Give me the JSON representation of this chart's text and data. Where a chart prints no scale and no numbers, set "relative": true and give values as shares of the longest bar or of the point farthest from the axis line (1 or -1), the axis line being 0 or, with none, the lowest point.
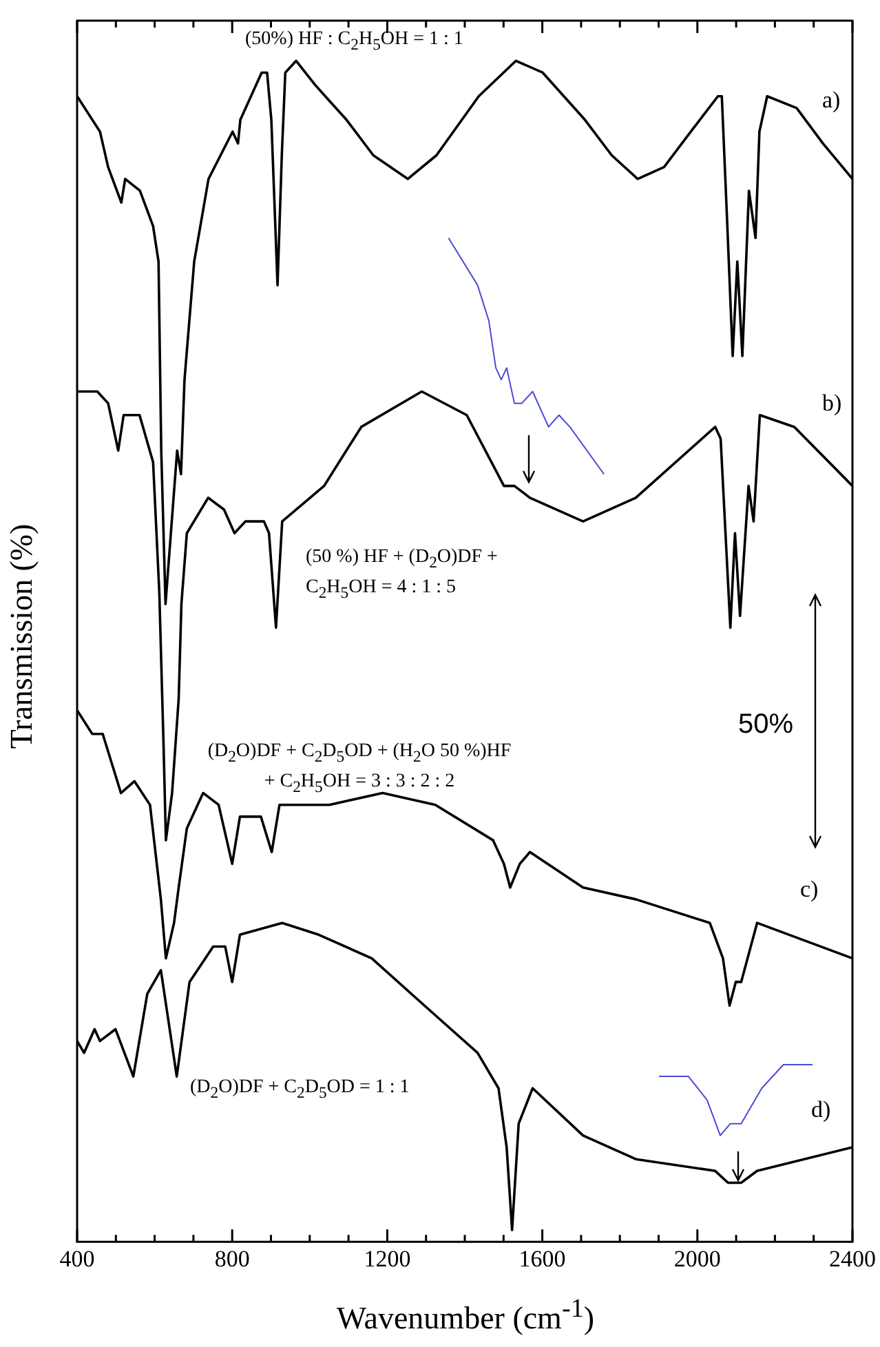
{
  "chart_data": {
    "type": "line",
    "relative": true,
    "xlabel": "Wavenumber (cm$^{-1}$)",
    "ylabel": "Transmission (%)",
    "xlim": [
      400,
      2400
    ],
    "xticks": [
      400,
      {
        "value": 500,
        "label": null
      },
      {
        "value": 600,
        "label": null
      },
      {
        "value": 700,
        "label": null
      },
      800,
      {
        "value": 900,
        "label": null
      },
      {
        "value": 1000,
        "label": null
      },
      {
        "value": 1100,
        "label": null
      },
      1200,
      {
        "value": 1300,
        "label": null
      },
      {
        "value": 1400,
        "label": null
      },
      {
        "value": 1500,
        "label": null
      },
      1600,
      {
        "value": 1700,
        "label": null
      },
      {
        "value": 1800,
        "label": null
      },
      {
        "value": 1900,
        "label": null
      },
      2000,
      {
        "value": 2100,
        "label": null
      },
      {
        "value": 2200,
        "label": null
      },
      {
        "value": 2300,
        "label": null
      },
      2400
    ],
    "grid": false,
    "legend": false,
    "marker": "none",
    "line_style": "solid",
    "annotations": [
      "(50%) HF : C$_{2}$H$_{5}$OH = 1 : 1",
      "(50 %) HF + (D$_{2}$O)DF + C$_{2}$H$_{5}$OH = 4 : 1 : 5",
      "(D$_{2}$O)DF + C$_{2}$D$_{5}$OD + (H$_{2}$O 50 %)HF + C$_{2}$H$_{5}$OH = 3 : 3 : 2 : 2",
      "(D$_{2}$O)DF + C$_{2}$D$_{5}$OD = 1 : 1",
      "50%"
    ],
    "series": [
      {
        "name": "a)",
        "color": "#000000",
        "x": [
          400,
          459,
          480,
          514,
          524,
          562,
          596,
          610,
          617,
          628,
          658,
          668,
          677,
          702,
          739,
          801,
          815,
          821,
          876,
          890,
          901,
          917,
          928,
          937,
          965,
          1013,
          1040,
          1095,
          1164,
          1253,
          1327,
          1436,
          1532,
          1601,
          1710,
          1779,
          1846,
          1914,
          1983,
          2053,
          2063,
          2076,
          2091,
          2103,
          2116,
          2133,
          2150,
          2160,
          2180,
          2256,
          2324,
          2400
        ],
        "values": [
          0.97,
          0.94,
          0.91,
          0.88,
          0.9,
          0.89,
          0.86,
          0.83,
          0.67,
          0.54,
          0.67,
          0.65,
          0.73,
          0.83,
          0.9,
          0.94,
          0.93,
          0.95,
          0.99,
          0.99,
          0.95,
          0.81,
          0.92,
          0.99,
          1.0,
          0.98,
          0.97,
          0.95,
          0.92,
          0.9,
          0.92,
          0.97,
          1.0,
          0.99,
          0.95,
          0.92,
          0.9,
          0.91,
          0.94,
          0.97,
          0.97,
          0.87,
          0.75,
          0.83,
          0.75,
          0.89,
          0.85,
          0.94,
          0.97,
          0.96,
          0.93,
          0.9
        ]
      },
      {
        "name": "b)",
        "color": "#000000",
        "x": [
          400,
          425,
          452,
          480,
          506,
          520,
          561,
          596,
          612,
          623,
          629,
          645,
          662,
          669,
          683,
          738,
          779,
          806,
          834,
          882,
          895,
          913,
          929,
          1037,
          1133,
          1289,
          1405,
          1501,
          1528,
          1568,
          1705,
          1841,
          2046,
          2060,
          2085,
          2097,
          2110,
          2132,
          2145,
          2161,
          2250,
          2400
        ],
        "values": [
          0.72,
          0.72,
          0.72,
          0.71,
          0.67,
          0.7,
          0.7,
          0.66,
          0.55,
          0.42,
          0.34,
          0.38,
          0.46,
          0.54,
          0.6,
          0.63,
          0.62,
          0.6,
          0.61,
          0.61,
          0.6,
          0.52,
          0.61,
          0.64,
          0.69,
          0.72,
          0.7,
          0.64,
          0.64,
          0.63,
          0.61,
          0.63,
          0.69,
          0.68,
          0.52,
          0.6,
          0.53,
          0.64,
          0.61,
          0.7,
          0.69,
          0.64
        ]
      },
      {
        "name": "c)",
        "color": "#000000",
        "x": [
          400,
          439,
          466,
          513,
          548,
          588,
          616,
          629,
          650,
          662,
          683,
          725,
          765,
          800,
          820,
          874,
          902,
          922,
          1051,
          1188,
          1324,
          1473,
          1501,
          1517,
          1542,
          1568,
          1705,
          1841,
          2032,
          2066,
          2083,
          2099,
          2113,
          2154,
          2400
        ],
        "values": [
          0.45,
          0.43,
          0.43,
          0.38,
          0.39,
          0.37,
          0.29,
          0.24,
          0.27,
          0.3,
          0.35,
          0.38,
          0.37,
          0.32,
          0.36,
          0.36,
          0.33,
          0.37,
          0.37,
          0.38,
          0.37,
          0.34,
          0.32,
          0.3,
          0.32,
          0.33,
          0.3,
          0.29,
          0.27,
          0.24,
          0.2,
          0.22,
          0.22,
          0.27,
          0.24
        ]
      },
      {
        "name": "d)",
        "color": "#000000",
        "x": [
          400,
          418,
          445,
          459,
          499,
          545,
          581,
          616,
          657,
          690,
          751,
          782,
          800,
          820,
          929,
          1023,
          1160,
          1296,
          1433,
          1487,
          1508,
          1522,
          1539,
          1575,
          1705,
          1841,
          2046,
          2079,
          2113,
          2154,
          2400
        ],
        "values": [
          0.17,
          0.16,
          0.18,
          0.17,
          0.18,
          0.14,
          0.21,
          0.23,
          0.14,
          0.22,
          0.25,
          0.25,
          0.22,
          0.26,
          0.27,
          0.26,
          0.24,
          0.2,
          0.16,
          0.13,
          0.08,
          0.01,
          0.1,
          0.13,
          0.09,
          0.07,
          0.06,
          0.05,
          0.05,
          0.06,
          0.08
        ]
      },
      {
        "color": "#4b4bd6",
        "x": [
          1358,
          1433,
          1462,
          1480,
          1494,
          1508,
          1528,
          1547,
          1575,
          1616,
          1643,
          1671,
          1759
        ],
        "values": [
          0.85,
          0.81,
          0.78,
          0.74,
          0.73,
          0.74,
          0.71,
          0.71,
          0.72,
          0.69,
          0.7,
          0.69,
          0.65
        ]
      },
      {
        "color": "#4b4bd6",
        "x": [
          1901,
          1977,
          2025,
          2059,
          2085,
          2113,
          2166,
          2222,
          2297
        ],
        "values": [
          0.14,
          0.14,
          0.12,
          0.09,
          0.1,
          0.1,
          0.13,
          0.15,
          0.15
        ]
      }
    ]
  }
}
